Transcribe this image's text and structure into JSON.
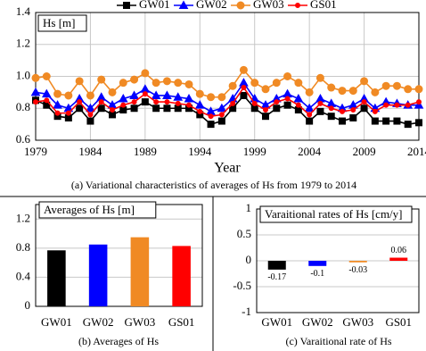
{
  "chart_data": [
    {
      "type": "line",
      "title": "Hs [m]",
      "xlabel": "Year",
      "caption": "(a) Variational characteristics of averages of Hs from 1979 to 2014",
      "x": [
        1979,
        1980,
        1981,
        1982,
        1983,
        1984,
        1985,
        1986,
        1987,
        1988,
        1989,
        1990,
        1991,
        1992,
        1993,
        1994,
        1995,
        1996,
        1997,
        1998,
        1999,
        2000,
        2001,
        2002,
        2003,
        2004,
        2005,
        2006,
        2007,
        2008,
        2009,
        2010,
        2011,
        2012,
        2013,
        2014
      ],
      "xlim": [
        1979,
        2014
      ],
      "xticks": [
        1979,
        1984,
        1989,
        1994,
        1999,
        2004,
        2009,
        2014
      ],
      "ylim": [
        0.6,
        1.4
      ],
      "yticks": [
        0.6,
        0.8,
        {
          "value": 1,
          "label": "1.0"
        },
        1.2,
        1.4
      ],
      "grid": true,
      "series": [
        {
          "name": "GW01",
          "color": "#000000",
          "marker": "square",
          "values": [
            0.85,
            0.82,
            0.75,
            0.74,
            0.8,
            0.72,
            0.8,
            0.76,
            0.79,
            0.8,
            0.84,
            0.8,
            0.8,
            0.8,
            0.8,
            0.76,
            0.7,
            0.72,
            0.8,
            0.88,
            0.8,
            0.75,
            0.8,
            0.82,
            0.79,
            0.72,
            0.78,
            0.75,
            0.72,
            0.74,
            0.8,
            0.72,
            0.72,
            0.72,
            0.7,
            0.71
          ]
        },
        {
          "name": "GW02",
          "color": "#0000ff",
          "marker": "triangle",
          "values": [
            0.9,
            0.89,
            0.82,
            0.8,
            0.86,
            0.8,
            0.87,
            0.82,
            0.86,
            0.88,
            0.92,
            0.88,
            0.88,
            0.87,
            0.86,
            0.82,
            0.78,
            0.8,
            0.86,
            0.96,
            0.86,
            0.82,
            0.86,
            0.89,
            0.86,
            0.8,
            0.86,
            0.83,
            0.8,
            0.82,
            0.86,
            0.8,
            0.84,
            0.83,
            0.82,
            0.82
          ]
        },
        {
          "name": "GW03",
          "color": "#f08a24",
          "marker": "circle",
          "values": [
            0.99,
            1.0,
            0.89,
            0.88,
            0.97,
            0.88,
            0.98,
            0.9,
            0.96,
            0.98,
            1.02,
            0.96,
            0.97,
            0.96,
            0.95,
            0.89,
            0.87,
            0.87,
            0.94,
            1.04,
            0.96,
            0.92,
            0.96,
            1.0,
            0.96,
            0.9,
            0.99,
            0.93,
            0.91,
            0.91,
            0.97,
            0.9,
            0.94,
            0.94,
            0.92,
            0.92
          ]
        },
        {
          "name": "GS01",
          "color": "#ff0000",
          "marker": "dot",
          "values": [
            0.84,
            0.85,
            0.77,
            0.77,
            0.84,
            0.76,
            0.84,
            0.79,
            0.82,
            0.84,
            0.89,
            0.84,
            0.84,
            0.83,
            0.82,
            0.78,
            0.75,
            0.76,
            0.83,
            0.93,
            0.83,
            0.79,
            0.84,
            0.86,
            0.82,
            0.76,
            0.83,
            0.8,
            0.78,
            0.79,
            0.84,
            0.78,
            0.82,
            0.82,
            0.82,
            0.84
          ]
        }
      ]
    },
    {
      "type": "bar",
      "title": "Averages of Hs [m]",
      "caption": "(b) Averages of Hs",
      "categories": [
        "GW01",
        "GW02",
        "GW03",
        "GS01"
      ],
      "values": [
        0.77,
        0.85,
        0.95,
        0.83
      ],
      "colors": [
        "#000000",
        "#0000ff",
        "#f08a24",
        "#ff0000"
      ],
      "ylim": [
        0,
        1.4
      ],
      "yticks": [
        0,
        0.4,
        0.8,
        1.2
      ],
      "grid": true
    },
    {
      "type": "bar",
      "title": "Varaitional rates of Hs [cm/y]",
      "caption": "(c) Varaitional rate of Hs",
      "categories": [
        "GW01",
        "GW02",
        "GW03",
        "GS01"
      ],
      "values": [
        -0.17,
        -0.1,
        -0.03,
        0.06
      ],
      "colors": [
        "#000000",
        "#0000ff",
        "#f08a24",
        "#ff0000"
      ],
      "data_labels": true,
      "ylim": [
        -1,
        1
      ],
      "yticks": [
        -1,
        -0.5,
        0,
        0.5,
        1
      ],
      "grid": true
    }
  ]
}
